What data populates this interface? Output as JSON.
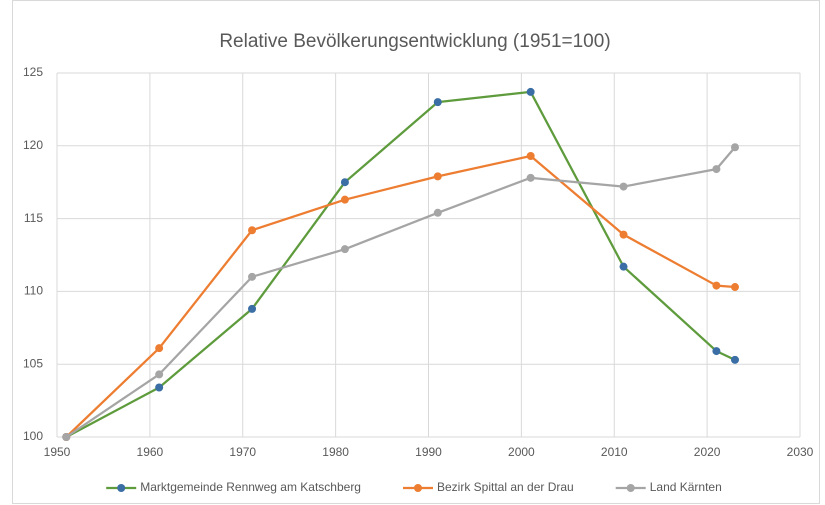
{
  "chart_data": {
    "type": "line",
    "title": "Relative Bevölkerungsentwicklung (1951=100)",
    "x": [
      1951,
      1961,
      1971,
      1981,
      1991,
      2001,
      2011,
      2021,
      2023
    ],
    "series": [
      {
        "name": "Marktgemeinde Rennweg am Katschberg",
        "color": "#5e9b3c",
        "marker_color": "#3a6ea5",
        "values": [
          100,
          103.4,
          108.8,
          117.5,
          123.0,
          123.7,
          111.7,
          105.9,
          105.3
        ]
      },
      {
        "name": "Bezirk Spittal an der Drau",
        "color": "#ed7d31",
        "marker_color": "#ed7d31",
        "values": [
          100,
          106.1,
          114.2,
          116.3,
          117.9,
          119.3,
          113.9,
          110.4,
          110.3
        ]
      },
      {
        "name": "Land Kärnten",
        "color": "#a5a5a5",
        "marker_color": "#a5a5a5",
        "values": [
          100,
          104.3,
          111.0,
          112.9,
          115.4,
          117.8,
          117.2,
          118.4,
          119.9
        ]
      }
    ],
    "xlim": [
      1950,
      2030
    ],
    "xticks": [
      1950,
      1960,
      1970,
      1980,
      1990,
      2000,
      2010,
      2020,
      2030
    ],
    "ylim": [
      100,
      125
    ],
    "yticks": [
      100,
      105,
      110,
      115,
      120,
      125
    ],
    "grid": true,
    "legend": "bottom"
  }
}
